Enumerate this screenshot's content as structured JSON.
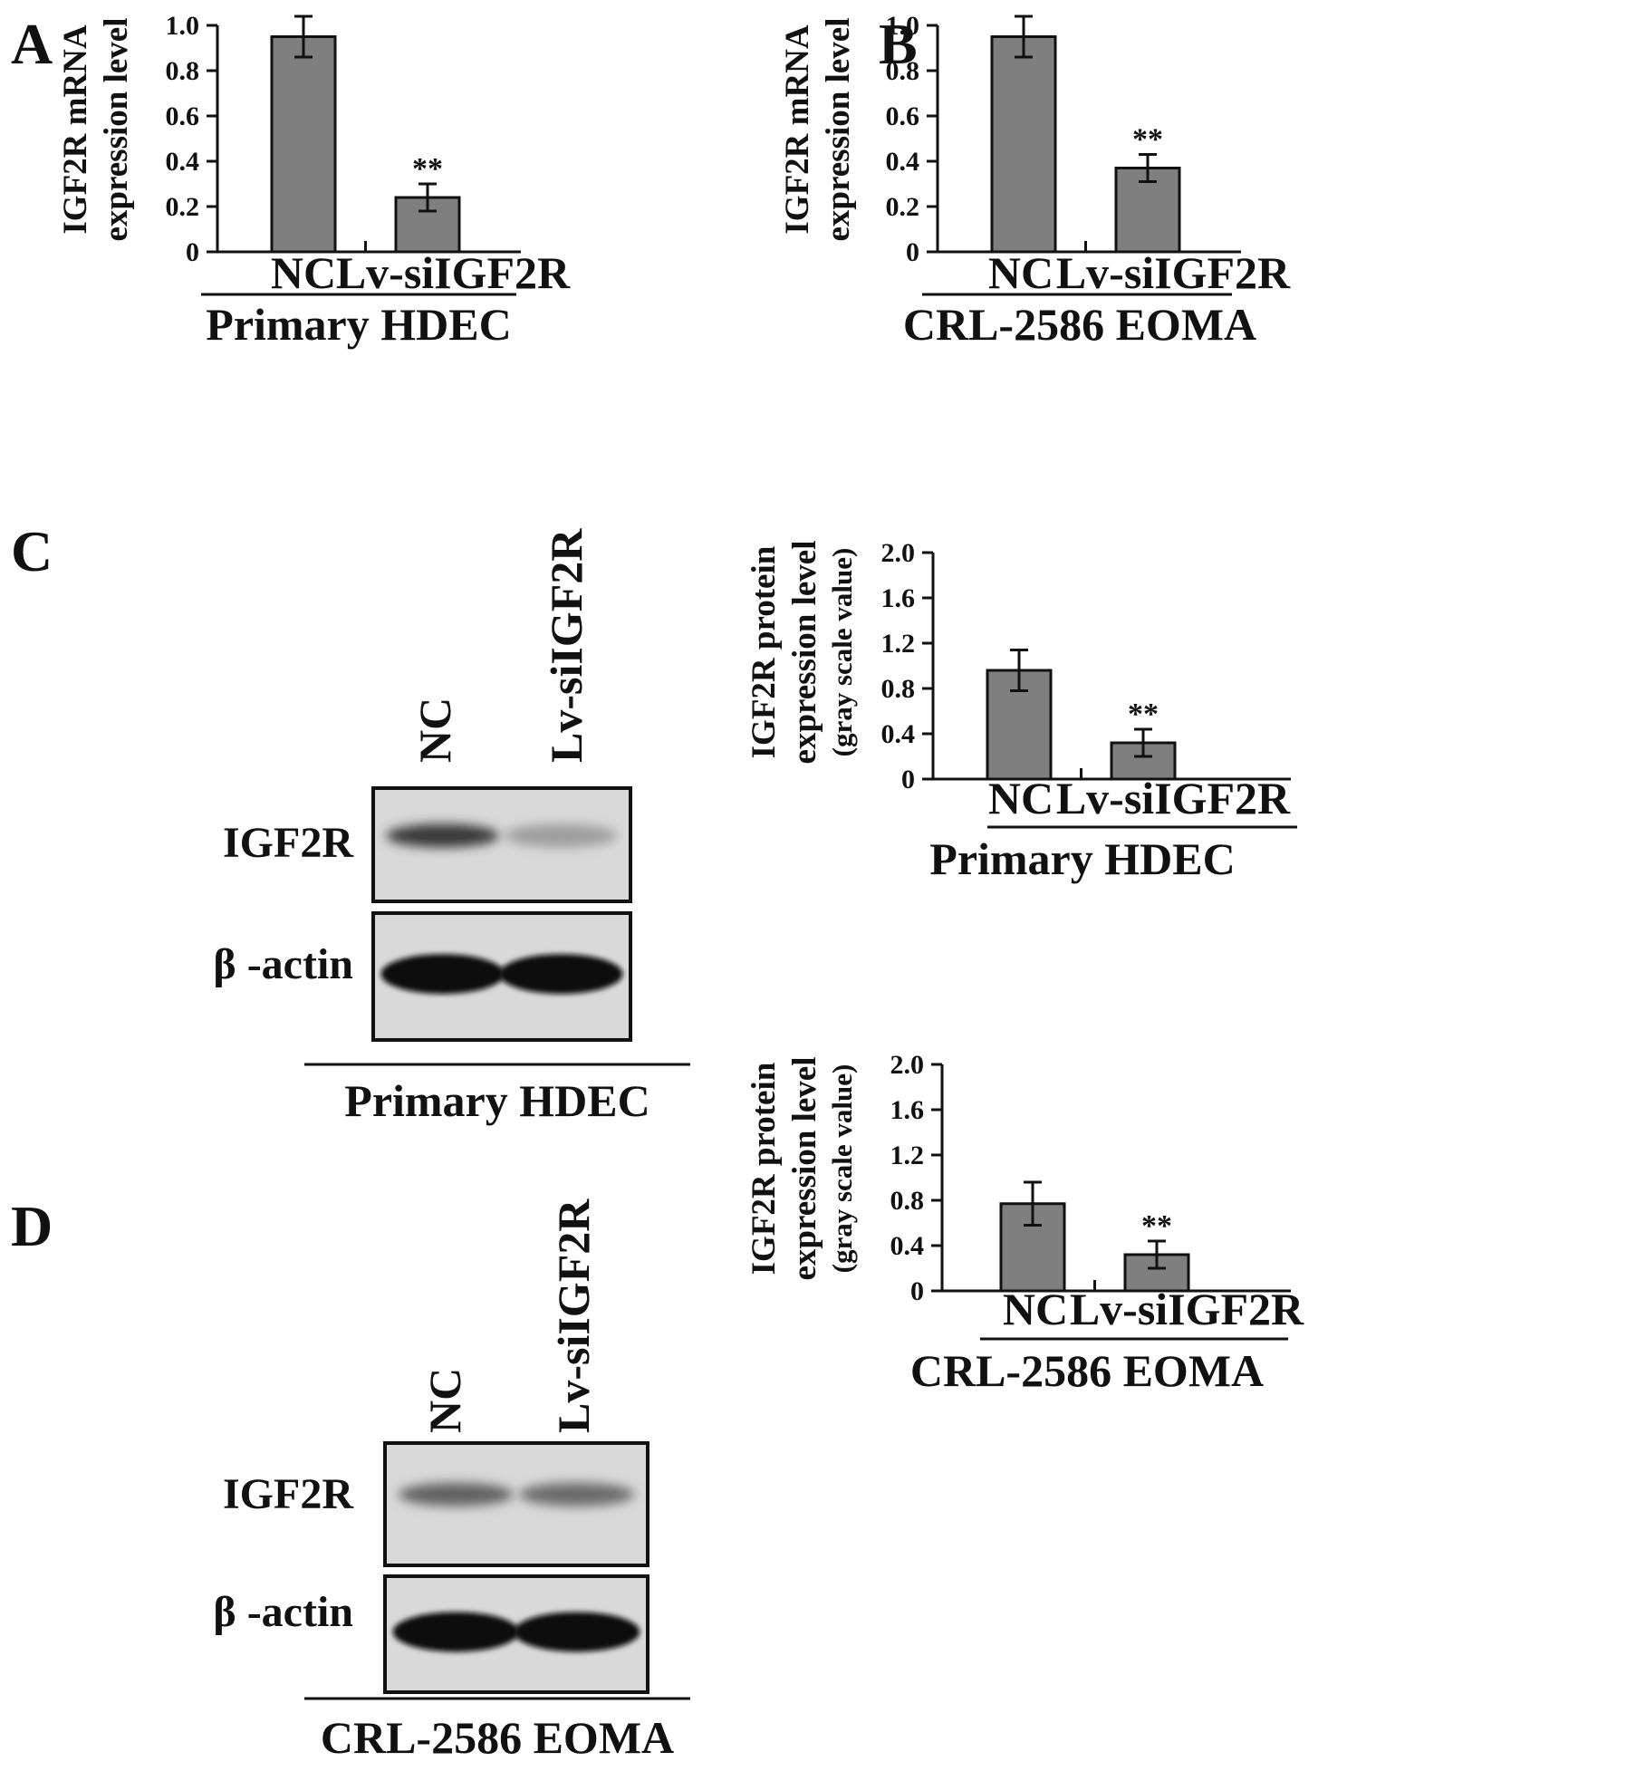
{
  "panels": {
    "A": {
      "letter": "A"
    },
    "B": {
      "letter": "B"
    },
    "C": {
      "letter": "C"
    },
    "D": {
      "letter": "D"
    }
  },
  "blots": {
    "C": {
      "lanes": [
        "NC",
        "Lv-siIGF2R"
      ],
      "bands": [
        "IGF2R",
        "β -actin"
      ],
      "group": "Primary HDEC",
      "igf2r_intensity": [
        0.85,
        0.25
      ],
      "actin_intensity": [
        1.0,
        1.0
      ]
    },
    "D": {
      "lanes": [
        "NC",
        "Lv-siIGF2R"
      ],
      "bands": [
        "IGF2R",
        "β -actin"
      ],
      "group": "CRL-2586 EOMA",
      "igf2r_intensity": [
        0.6,
        0.55
      ],
      "actin_intensity": [
        1.0,
        1.0
      ]
    }
  },
  "chart_data": [
    {
      "panel": "A",
      "type": "bar",
      "categories": [
        "NC",
        "Lv-siIGF2R"
      ],
      "values": [
        0.95,
        0.24
      ],
      "errors": [
        0.09,
        0.06
      ],
      "significance": [
        "",
        "**"
      ],
      "ylabel_lines": [
        "IGF2R mRNA",
        "expression level"
      ],
      "yticks": [
        "0",
        "0.2",
        "0.4",
        "0.6",
        "0.8",
        "1.0"
      ],
      "ylim": [
        0,
        1.0
      ],
      "group_label": "Primary HDEC",
      "bar_color": "#7f7f7f"
    },
    {
      "panel": "B",
      "type": "bar",
      "categories": [
        "NC",
        "Lv-siIGF2R"
      ],
      "values": [
        0.95,
        0.37
      ],
      "errors": [
        0.09,
        0.06
      ],
      "significance": [
        "",
        "**"
      ],
      "ylabel_lines": [
        "IGF2R mRNA",
        "expression level"
      ],
      "yticks": [
        "0",
        "0.2",
        "0.4",
        "0.6",
        "0.8",
        "1.0"
      ],
      "ylim": [
        0,
        1.0
      ],
      "group_label": "CRL-2586 EOMA",
      "bar_color": "#7f7f7f"
    },
    {
      "panel": "C",
      "type": "bar",
      "categories": [
        "NC",
        "Lv-siIGF2R"
      ],
      "values": [
        0.96,
        0.32
      ],
      "errors": [
        0.18,
        0.12
      ],
      "significance": [
        "",
        "**"
      ],
      "ylabel_lines": [
        "IGF2R protein",
        "expression level",
        "(gray scale value)"
      ],
      "yticks": [
        "0",
        "0.4",
        "0.8",
        "1.2",
        "1.6",
        "2.0"
      ],
      "ylim": [
        0,
        2.0
      ],
      "group_label": "Primary HDEC",
      "bar_color": "#7f7f7f"
    },
    {
      "panel": "D",
      "type": "bar",
      "categories": [
        "NC",
        "Lv-siIGF2R"
      ],
      "values": [
        0.77,
        0.32
      ],
      "errors": [
        0.19,
        0.12
      ],
      "significance": [
        "",
        "**"
      ],
      "ylabel_lines": [
        "IGF2R protein",
        "expression level",
        "(gray scale value)"
      ],
      "yticks": [
        "0",
        "0.4",
        "0.8",
        "1.2",
        "1.6",
        "2.0"
      ],
      "ylim": [
        0,
        2.0
      ],
      "group_label": "CRL-2586 EOMA",
      "bar_color": "#7f7f7f"
    }
  ]
}
